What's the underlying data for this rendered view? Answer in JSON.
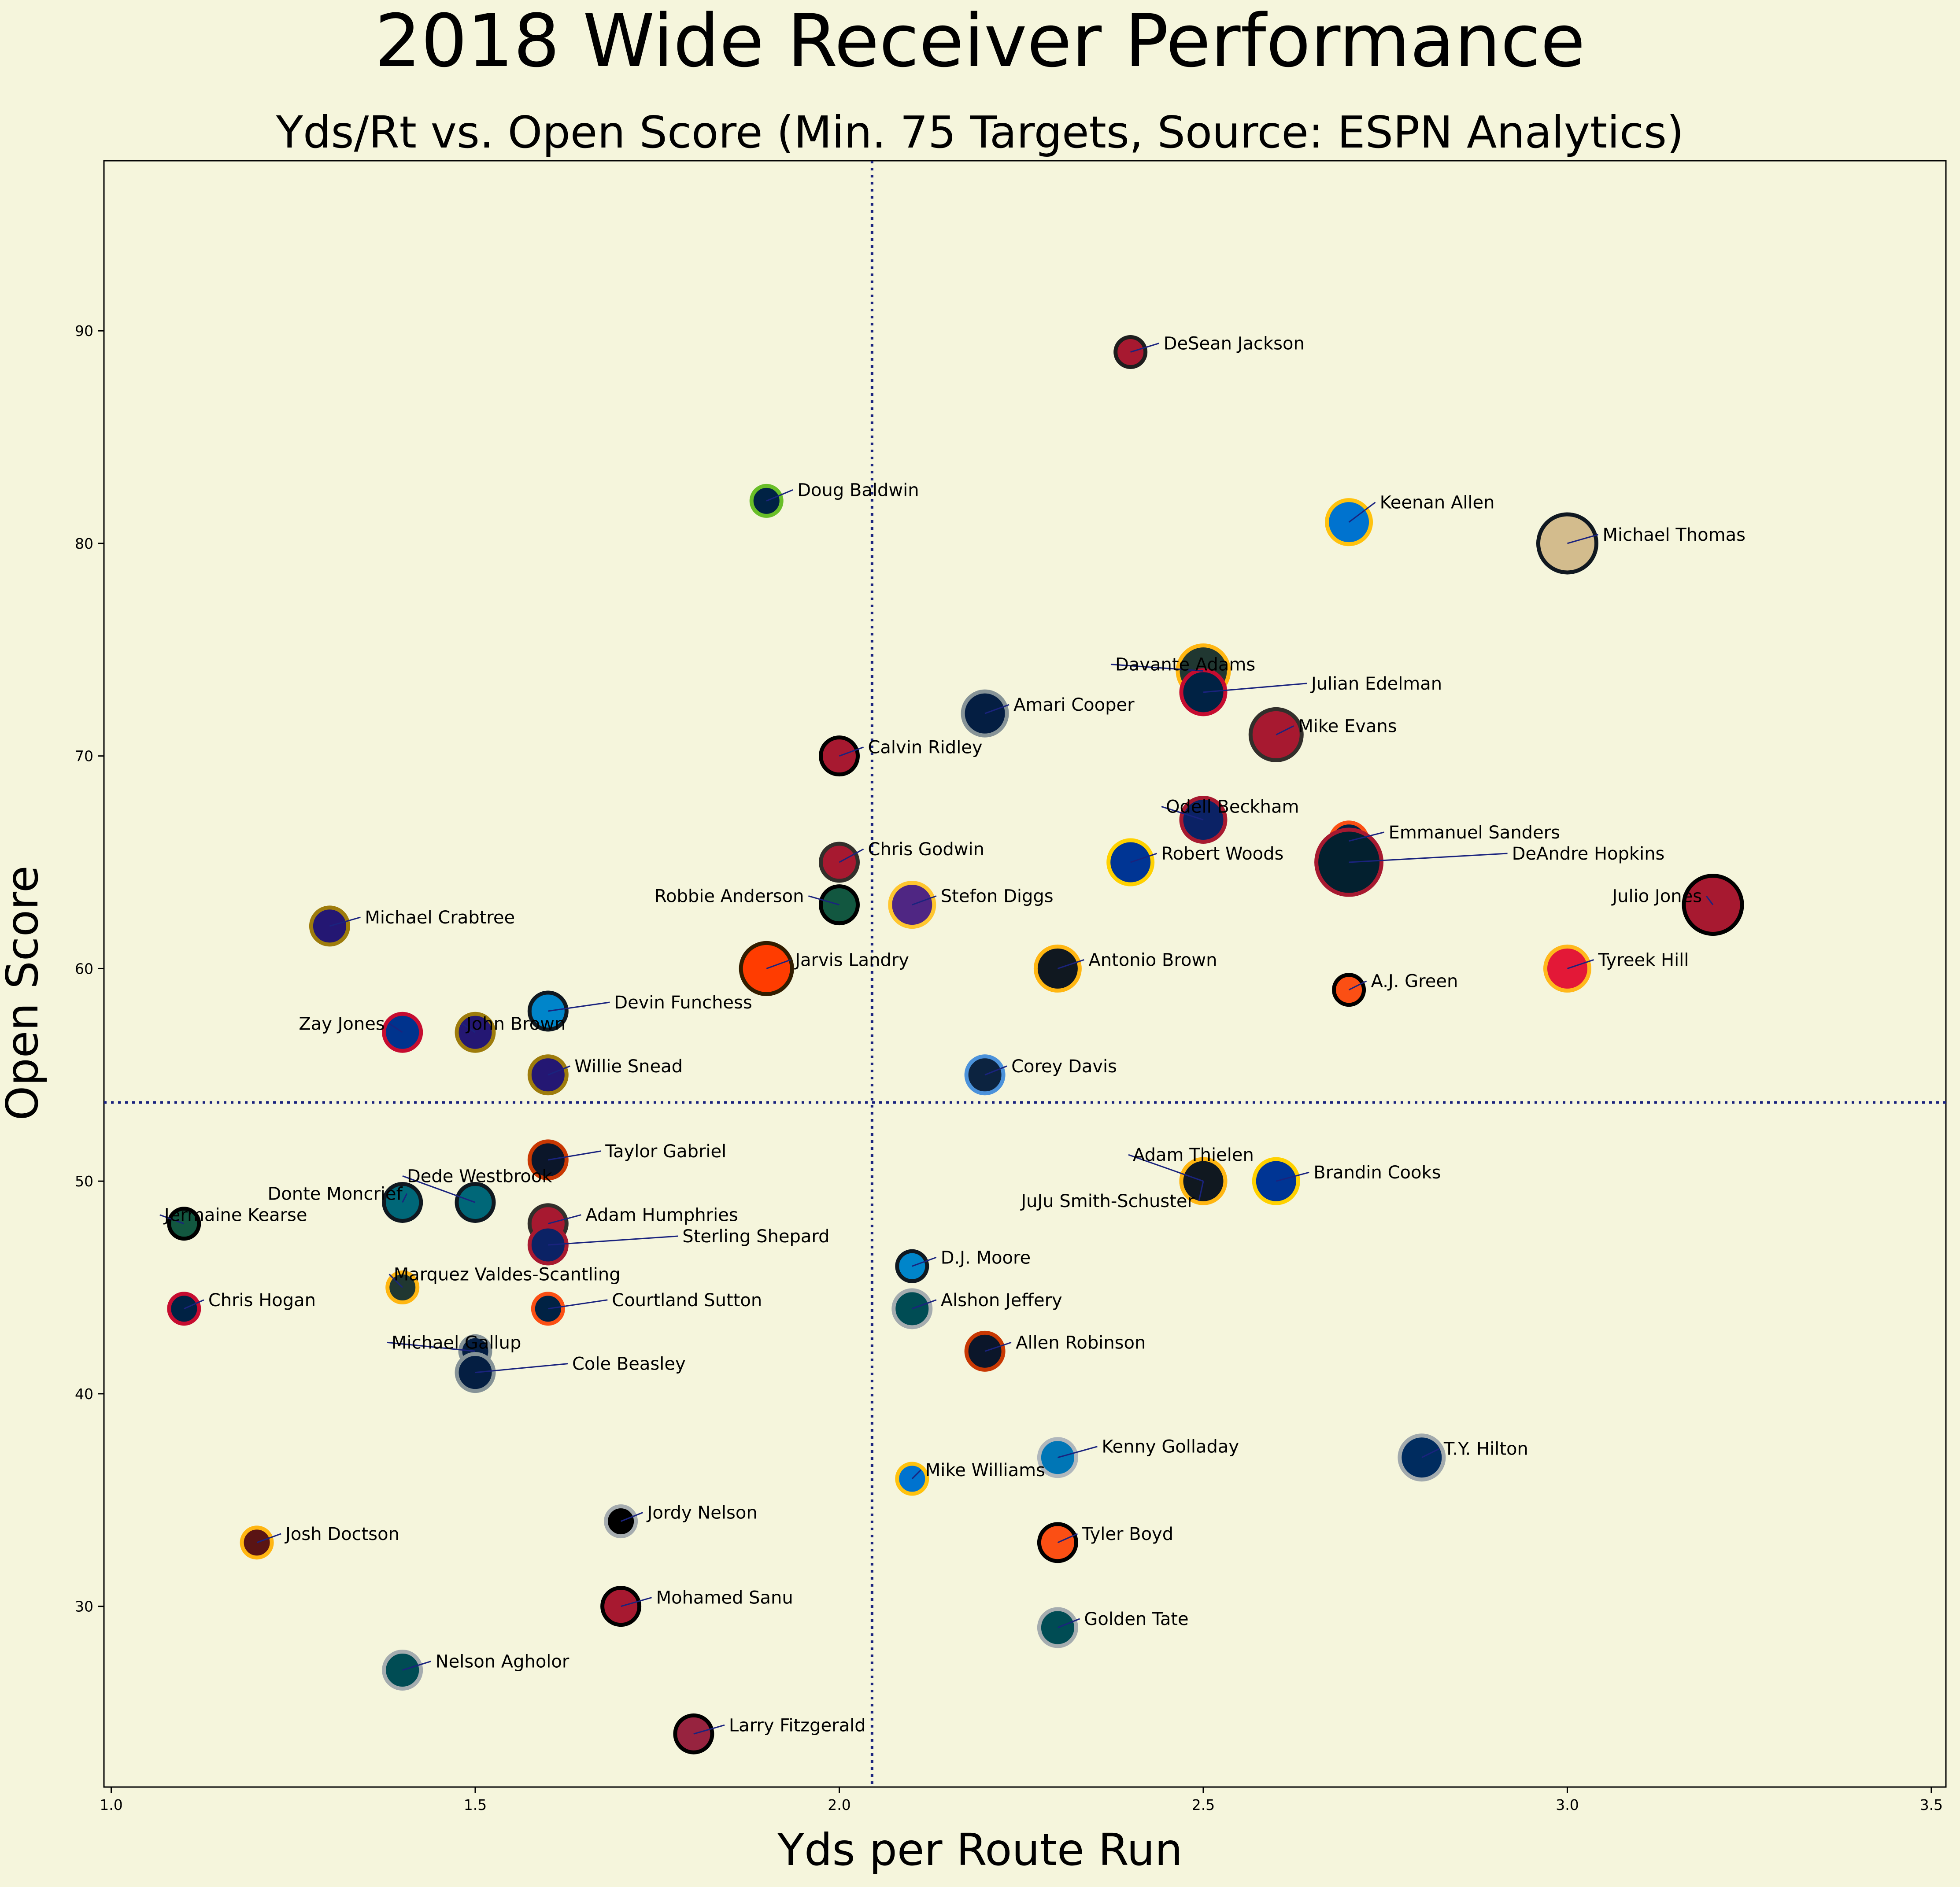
{
  "chart_data": {
    "type": "scatter",
    "title": "2018 Wide Receiver Performance",
    "subtitle": "Yds/Rt vs. Open Score (Min. 75 Targets, Source: ESPN Analytics)",
    "xlabel": "Yds per Route Run",
    "ylabel": "Open Score",
    "xlim": [
      0.99,
      3.52
    ],
    "ylim": [
      21.5,
      98
    ],
    "xticks": [
      1.0,
      1.5,
      2.0,
      2.5,
      3.0,
      3.5
    ],
    "xtick_labels": [
      "1.0",
      "1.5",
      "2.0",
      "2.5",
      "3.0",
      "3.5"
    ],
    "yticks": [
      30,
      40,
      50,
      60,
      70,
      80,
      90
    ],
    "ytick_labels": [
      "30",
      "40",
      "50",
      "60",
      "70",
      "80",
      "90"
    ],
    "reference_lines": {
      "x": 2.045,
      "y": 53.7,
      "style": "dotted",
      "color": "#1a237e"
    },
    "grid": false,
    "legend": "none",
    "points": [
      {
        "name": "DeSean Jackson",
        "x": 2.4,
        "y": 89,
        "size": 1,
        "fill": "#a71930",
        "edge": "#1e1e1e"
      },
      {
        "name": "Doug Baldwin",
        "x": 1.9,
        "y": 82,
        "size": 1,
        "fill": "#002244",
        "edge": "#69be28"
      },
      {
        "name": "Keenan Allen",
        "x": 2.7,
        "y": 81,
        "size": 3,
        "fill": "#0073cf",
        "edge": "#ffc20e"
      },
      {
        "name": "Michael Thomas",
        "x": 3.0,
        "y": 80,
        "size": 5,
        "fill": "#d3bc8d",
        "edge": "#101820"
      },
      {
        "name": "Davante Adams",
        "x": 2.5,
        "y": 74,
        "size": 4,
        "fill": "#203731",
        "edge": "#ffb612"
      },
      {
        "name": "Julian Edelman",
        "x": 2.5,
        "y": 73,
        "size": 3,
        "fill": "#002244",
        "edge": "#c60c30"
      },
      {
        "name": "Amari Cooper",
        "x": 2.2,
        "y": 72,
        "size": 3,
        "fill": "#041e42",
        "edge": "#869397"
      },
      {
        "name": "Mike Evans",
        "x": 2.6,
        "y": 71,
        "size": 4,
        "fill": "#a71930",
        "edge": "#322f2b"
      },
      {
        "name": "Calvin Ridley",
        "x": 2.0,
        "y": 70,
        "size": 2,
        "fill": "#a71930",
        "edge": "#000000"
      },
      {
        "name": "Odell Beckham",
        "x": 2.5,
        "y": 67,
        "size": 3,
        "fill": "#0b2265",
        "edge": "#a71930"
      },
      {
        "name": "Emmanuel Sanders",
        "x": 2.7,
        "y": 66,
        "size": 2,
        "fill": "#002244",
        "edge": "#fb4f14"
      },
      {
        "name": "Chris Godwin",
        "x": 2.0,
        "y": 65,
        "size": 2,
        "fill": "#a71930",
        "edge": "#322f2b"
      },
      {
        "name": "Robert Woods",
        "x": 2.4,
        "y": 65,
        "size": 3,
        "fill": "#003594",
        "edge": "#ffd100"
      },
      {
        "name": "DeAndre Hopkins",
        "x": 2.7,
        "y": 65,
        "size": 6,
        "fill": "#03202f",
        "edge": "#a71930"
      },
      {
        "name": "Robbie Anderson",
        "x": 2.0,
        "y": 63,
        "size": 2,
        "fill": "#125740",
        "edge": "#000000"
      },
      {
        "name": "Stefon Diggs",
        "x": 2.1,
        "y": 63,
        "size": 3,
        "fill": "#4f2683",
        "edge": "#ffc62f"
      },
      {
        "name": "Julio Jones",
        "x": 3.2,
        "y": 63,
        "size": 5,
        "fill": "#a71930",
        "edge": "#000000"
      },
      {
        "name": "Michael Crabtree",
        "x": 1.3,
        "y": 62,
        "size": 2,
        "fill": "#241773",
        "edge": "#9e7c0c"
      },
      {
        "name": "Jarvis Landry",
        "x": 1.9,
        "y": 60,
        "size": 4,
        "fill": "#ff3c00",
        "edge": "#311d00"
      },
      {
        "name": "Antonio Brown",
        "x": 2.3,
        "y": 60,
        "size": 3,
        "fill": "#101820",
        "edge": "#ffb612"
      },
      {
        "name": "Tyreek Hill",
        "x": 3.0,
        "y": 60,
        "size": 3,
        "fill": "#e31837",
        "edge": "#ffb81c"
      },
      {
        "name": "A.J. Green",
        "x": 2.7,
        "y": 59,
        "size": 1,
        "fill": "#fb4f14",
        "edge": "#000000"
      },
      {
        "name": "Devin Funchess",
        "x": 1.6,
        "y": 58,
        "size": 2,
        "fill": "#0085ca",
        "edge": "#101820"
      },
      {
        "name": "Zay Jones",
        "x": 1.4,
        "y": 57,
        "size": 2,
        "fill": "#00338d",
        "edge": "#c60c30"
      },
      {
        "name": "John Brown",
        "x": 1.5,
        "y": 57,
        "size": 2,
        "fill": "#241773",
        "edge": "#9e7c0c"
      },
      {
        "name": "Willie Snead",
        "x": 1.6,
        "y": 55,
        "size": 2,
        "fill": "#241773",
        "edge": "#9e7c0c"
      },
      {
        "name": "Corey Davis",
        "x": 2.2,
        "y": 55,
        "size": 2,
        "fill": "#0c2340",
        "edge": "#4b92db"
      },
      {
        "name": "Taylor Gabriel",
        "x": 1.6,
        "y": 51,
        "size": 2,
        "fill": "#0b162a",
        "edge": "#c83803"
      },
      {
        "name": "Adam Thielen",
        "x": 2.5,
        "y": 50,
        "size": 3,
        "fill": "#4f2683",
        "edge": "#ffc62f"
      },
      {
        "name": "JuJu Smith-Schuster",
        "x": 2.5,
        "y": 50,
        "size": 3,
        "fill": "#101820",
        "edge": "#ffb612"
      },
      {
        "name": "Brandin Cooks",
        "x": 2.6,
        "y": 50,
        "size": 3,
        "fill": "#003594",
        "edge": "#ffd100"
      },
      {
        "name": "Donte Moncrief",
        "x": 1.4,
        "y": 49,
        "size": 2,
        "fill": "#006778",
        "edge": "#101820"
      },
      {
        "name": "Dede Westbrook",
        "x": 1.5,
        "y": 49,
        "size": 2,
        "fill": "#006778",
        "edge": "#101820"
      },
      {
        "name": "Jermaine Kearse",
        "x": 1.1,
        "y": 48,
        "size": 1,
        "fill": "#125740",
        "edge": "#000000"
      },
      {
        "name": "Adam Humphries",
        "x": 1.6,
        "y": 48,
        "size": 2,
        "fill": "#a71930",
        "edge": "#322f2b"
      },
      {
        "name": "Sterling Shepard",
        "x": 1.6,
        "y": 47,
        "size": 2,
        "fill": "#0b2265",
        "edge": "#a71930"
      },
      {
        "name": "D.J. Moore",
        "x": 2.1,
        "y": 46,
        "size": 1,
        "fill": "#0085ca",
        "edge": "#101820"
      },
      {
        "name": "Marquez Valdes-Scantling",
        "x": 1.4,
        "y": 45,
        "size": 1,
        "fill": "#203731",
        "edge": "#ffb612"
      },
      {
        "name": "Chris Hogan",
        "x": 1.1,
        "y": 44,
        "size": 1,
        "fill": "#002244",
        "edge": "#c60c30"
      },
      {
        "name": "Courtland Sutton",
        "x": 1.6,
        "y": 44,
        "size": 1,
        "fill": "#002244",
        "edge": "#fb4f14"
      },
      {
        "name": "Alshon Jeffery",
        "x": 2.1,
        "y": 44,
        "size": 2,
        "fill": "#004c54",
        "edge": "#a5acaf"
      },
      {
        "name": "Allen Robinson",
        "x": 2.2,
        "y": 42,
        "size": 2,
        "fill": "#0b162a",
        "edge": "#c83803"
      },
      {
        "name": "Michael Gallup",
        "x": 1.5,
        "y": 42,
        "size": 1,
        "fill": "#041e42",
        "edge": "#869397"
      },
      {
        "name": "Cole Beasley",
        "x": 1.5,
        "y": 41,
        "size": 2,
        "fill": "#041e42",
        "edge": "#869397"
      },
      {
        "name": "Kenny Golladay",
        "x": 2.3,
        "y": 37,
        "size": 2,
        "fill": "#0076b6",
        "edge": "#b0b7bc"
      },
      {
        "name": "T.Y. Hilton",
        "x": 2.8,
        "y": 37,
        "size": 3,
        "fill": "#002c5f",
        "edge": "#a2aaad"
      },
      {
        "name": "Mike Williams",
        "x": 2.1,
        "y": 36,
        "size": 1,
        "fill": "#0073cf",
        "edge": "#ffc20e"
      },
      {
        "name": "Jordy Nelson",
        "x": 1.7,
        "y": 34,
        "size": 1,
        "fill": "#000000",
        "edge": "#a5acaf"
      },
      {
        "name": "Josh Doctson",
        "x": 1.2,
        "y": 33,
        "size": 1,
        "fill": "#5a1414",
        "edge": "#ffb612"
      },
      {
        "name": "Tyler Boyd",
        "x": 2.3,
        "y": 33,
        "size": 2,
        "fill": "#fb4f14",
        "edge": "#000000"
      },
      {
        "name": "Mohamed Sanu",
        "x": 1.7,
        "y": 30,
        "size": 2,
        "fill": "#a71930",
        "edge": "#000000"
      },
      {
        "name": "Golden Tate",
        "x": 2.3,
        "y": 29,
        "size": 2,
        "fill": "#004c54",
        "edge": "#a5acaf"
      },
      {
        "name": "Nelson Agholor",
        "x": 1.4,
        "y": 27,
        "size": 2,
        "fill": "#004c54",
        "edge": "#a5acaf"
      },
      {
        "name": "Larry Fitzgerald",
        "x": 1.8,
        "y": 24,
        "size": 2,
        "fill": "#97233f",
        "edge": "#000000"
      }
    ]
  },
  "colors": {
    "background": "#f5f5dc",
    "reference_line": "#1a237e",
    "annotation_line": "#1a237e"
  }
}
